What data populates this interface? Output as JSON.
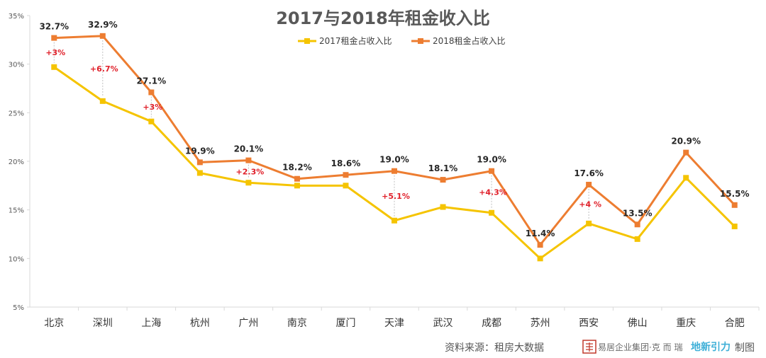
{
  "chart_data": {
    "type": "line",
    "title": "2017与2018年租金收入比",
    "categories": [
      "北京",
      "深圳",
      "上海",
      "杭州",
      "广州",
      "南京",
      "厦门",
      "天津",
      "武汉",
      "成都",
      "苏州",
      "西安",
      "佛山",
      "重庆",
      "合肥"
    ],
    "ylim": [
      5,
      35
    ],
    "yticks": [
      "5%",
      "10%",
      "15%",
      "20%",
      "25%",
      "30%",
      "35%"
    ],
    "ytick_values": [
      5,
      10,
      15,
      20,
      25,
      30,
      35
    ],
    "grid": false,
    "legend_position": "top",
    "series": [
      {
        "name": "2017租金占收入比",
        "color": "#f5c400",
        "values": [
          29.7,
          26.2,
          24.1,
          18.8,
          17.8,
          17.5,
          17.5,
          13.9,
          15.3,
          14.7,
          10.0,
          13.6,
          12.0,
          18.3,
          13.3
        ]
      },
      {
        "name": "2018租金占收入比",
        "color": "#ed7d31",
        "values": [
          32.7,
          32.9,
          27.1,
          19.9,
          20.1,
          18.2,
          18.6,
          19.0,
          18.1,
          19.0,
          11.4,
          17.6,
          13.5,
          20.9,
          15.5
        ]
      }
    ],
    "value_labels": [
      "32.7%",
      "32.9%",
      "27.1%",
      "19.9%",
      "20.1%",
      "18.2%",
      "18.6%",
      "19.0%",
      "18.1%",
      "19.0%",
      "11.4%",
      "17.6%",
      "13.5%",
      "20.9%",
      "15.5%"
    ],
    "diff_annotations": [
      {
        "index": 0,
        "text": "+3%"
      },
      {
        "index": 1,
        "text": "+6.7%"
      },
      {
        "index": 2,
        "text": "+3%"
      },
      {
        "index": 4,
        "text": "+2.3%"
      },
      {
        "index": 7,
        "text": "+5.1%"
      },
      {
        "index": 9,
        "text": "+4.3%"
      },
      {
        "index": 11,
        "text": "+4 %"
      }
    ]
  },
  "footer": {
    "source": "资料来源：租房大数据",
    "brand": "易居企业集团·克 而 瑞",
    "brand_logo": "地新引力",
    "made_by": "制图"
  }
}
